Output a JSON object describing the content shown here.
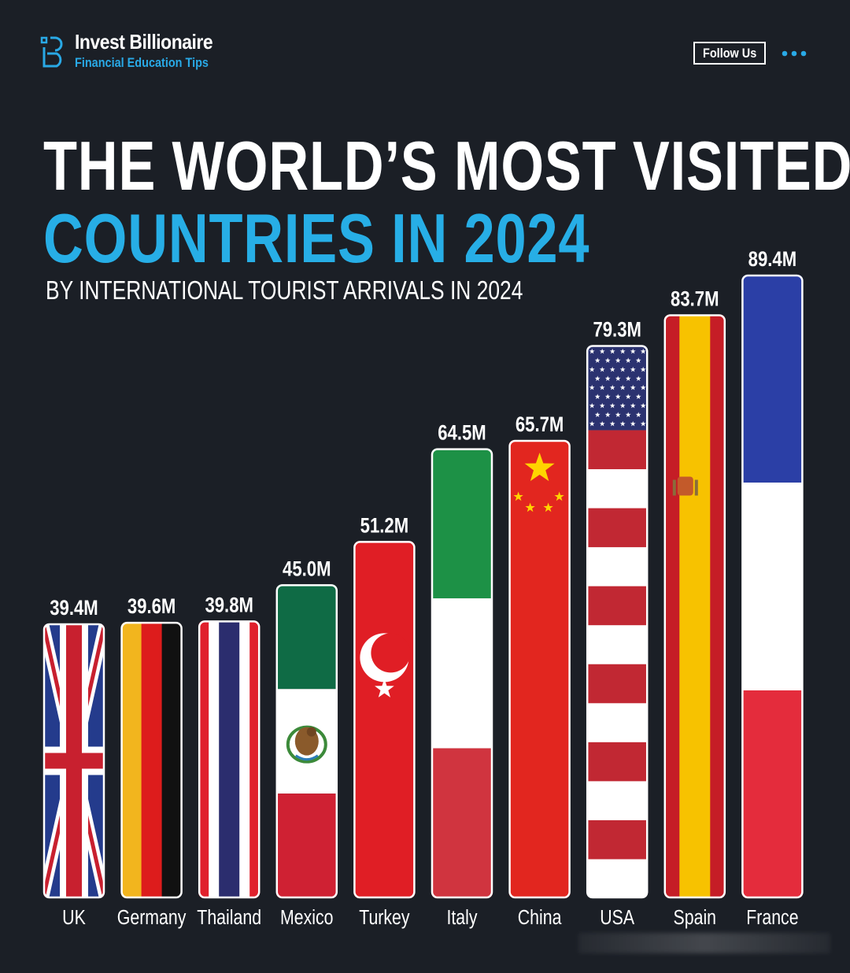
{
  "header": {
    "brand_name": "Invest Billionaire",
    "brand_tagline": "Financial Education Tips",
    "follow_label": "Follow Us",
    "more_icon": "more-dots-icon",
    "accent_color": "#29a9e6"
  },
  "title_line1": "THE WORLD’S MOST VISITED",
  "title_line2": "COUNTRIES IN 2024",
  "subtitle": "BY INTERNATIONAL TOURIST ARRIVALS IN 2024",
  "chart_data": {
    "type": "bar",
    "categories": [
      "UK",
      "Germany",
      "Thailand",
      "Mexico",
      "Turkey",
      "Italy",
      "China",
      "USA",
      "Spain",
      "France"
    ],
    "values": [
      39.4,
      39.6,
      39.8,
      45.0,
      51.2,
      64.5,
      65.7,
      79.3,
      83.7,
      89.4
    ],
    "value_labels": [
      "39.4M",
      "39.6M",
      "39.8M",
      "45.0M",
      "51.2M",
      "64.5M",
      "65.7M",
      "79.3M",
      "83.7M",
      "89.4M"
    ],
    "unit": "M",
    "bar_fill": "national flags",
    "colors": {
      "background": "#1b1f26",
      "title_accent": "#27aee6"
    }
  }
}
